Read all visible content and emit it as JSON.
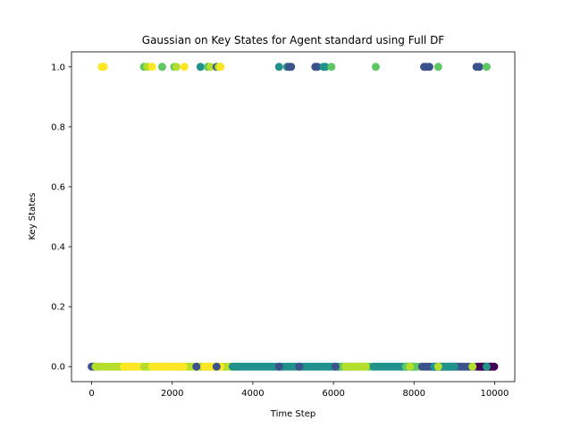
{
  "chart_data": {
    "type": "scatter",
    "title": "Gaussian on Key States for Agent standard using Full DF",
    "xlabel": "Time Step",
    "ylabel": "Key States",
    "xlim": [
      -500,
      10500
    ],
    "ylim": [
      -0.05,
      1.05
    ],
    "xticks": [
      0,
      2000,
      4000,
      6000,
      8000,
      10000
    ],
    "yticks": [
      0.0,
      0.2,
      0.4,
      0.6,
      0.8,
      1.0
    ],
    "xtick_labels": [
      "0",
      "2000",
      "4000",
      "6000",
      "8000",
      "10000"
    ],
    "ytick_labels": [
      "0.0",
      "0.2",
      "0.4",
      "0.6",
      "0.8",
      "1.0"
    ],
    "grid": false,
    "colormap": "viridis",
    "colors": {
      "dark_purple": "#440154",
      "indigo": "#3b528b",
      "teal": "#21918c",
      "green": "#5ec962",
      "lime": "#b5de2b",
      "yellow": "#fde725"
    },
    "series": [
      {
        "y": 1,
        "points": [
          {
            "x": 250,
            "c": "yellow"
          },
          {
            "x": 300,
            "c": "yellow"
          },
          {
            "x": 1300,
            "c": "green"
          },
          {
            "x": 1380,
            "c": "lime"
          },
          {
            "x": 1500,
            "c": "yellow"
          },
          {
            "x": 1750,
            "c": "green"
          },
          {
            "x": 2050,
            "c": "green"
          },
          {
            "x": 2100,
            "c": "lime"
          },
          {
            "x": 2300,
            "c": "yellow"
          },
          {
            "x": 2700,
            "c": "teal"
          },
          {
            "x": 2880,
            "c": "green"
          },
          {
            "x": 2950,
            "c": "lime"
          },
          {
            "x": 3100,
            "c": "indigo"
          },
          {
            "x": 3150,
            "c": "lime"
          },
          {
            "x": 3200,
            "c": "yellow"
          },
          {
            "x": 4650,
            "c": "teal"
          },
          {
            "x": 4850,
            "c": "teal"
          },
          {
            "x": 4900,
            "c": "indigo"
          },
          {
            "x": 4950,
            "c": "indigo"
          },
          {
            "x": 5550,
            "c": "indigo"
          },
          {
            "x": 5600,
            "c": "indigo"
          },
          {
            "x": 5750,
            "c": "teal"
          },
          {
            "x": 5800,
            "c": "teal"
          },
          {
            "x": 5950,
            "c": "green"
          },
          {
            "x": 7050,
            "c": "green"
          },
          {
            "x": 8250,
            "c": "indigo"
          },
          {
            "x": 8300,
            "c": "indigo"
          },
          {
            "x": 8380,
            "c": "indigo"
          },
          {
            "x": 8600,
            "c": "green"
          },
          {
            "x": 9550,
            "c": "indigo"
          },
          {
            "x": 9620,
            "c": "indigo"
          },
          {
            "x": 9800,
            "c": "green"
          }
        ]
      },
      {
        "y": 0,
        "bands": [
          {
            "from": 0,
            "to": 200,
            "c": "indigo"
          },
          {
            "from": 100,
            "to": 1000,
            "c": "lime"
          },
          {
            "from": 800,
            "to": 1300,
            "c": "yellow"
          },
          {
            "from": 1300,
            "to": 2700,
            "c": "lime"
          },
          {
            "from": 1500,
            "to": 2300,
            "c": "yellow"
          },
          {
            "from": 2700,
            "to": 3600,
            "c": "lime"
          },
          {
            "from": 2800,
            "to": 3200,
            "c": "yellow"
          },
          {
            "from": 3500,
            "to": 5500,
            "c": "teal"
          },
          {
            "from": 5500,
            "to": 6200,
            "c": "teal"
          },
          {
            "from": 6200,
            "to": 7000,
            "c": "green"
          },
          {
            "from": 6300,
            "to": 6800,
            "c": "lime"
          },
          {
            "from": 7000,
            "to": 8000,
            "c": "teal"
          },
          {
            "from": 7800,
            "to": 8300,
            "c": "green"
          },
          {
            "from": 8200,
            "to": 9200,
            "c": "indigo"
          },
          {
            "from": 8500,
            "to": 9000,
            "c": "teal"
          },
          {
            "from": 9200,
            "to": 10000,
            "c": "indigo"
          },
          {
            "from": 9600,
            "to": 10000,
            "c": "dark_purple"
          }
        ],
        "points": [
          {
            "x": 2600,
            "c": "indigo"
          },
          {
            "x": 3100,
            "c": "indigo"
          },
          {
            "x": 4650,
            "c": "indigo"
          },
          {
            "x": 5150,
            "c": "indigo"
          },
          {
            "x": 6050,
            "c": "indigo"
          },
          {
            "x": 7900,
            "c": "lime"
          },
          {
            "x": 8600,
            "c": "lime"
          },
          {
            "x": 9450,
            "c": "lime"
          },
          {
            "x": 9800,
            "c": "teal"
          }
        ]
      }
    ]
  }
}
